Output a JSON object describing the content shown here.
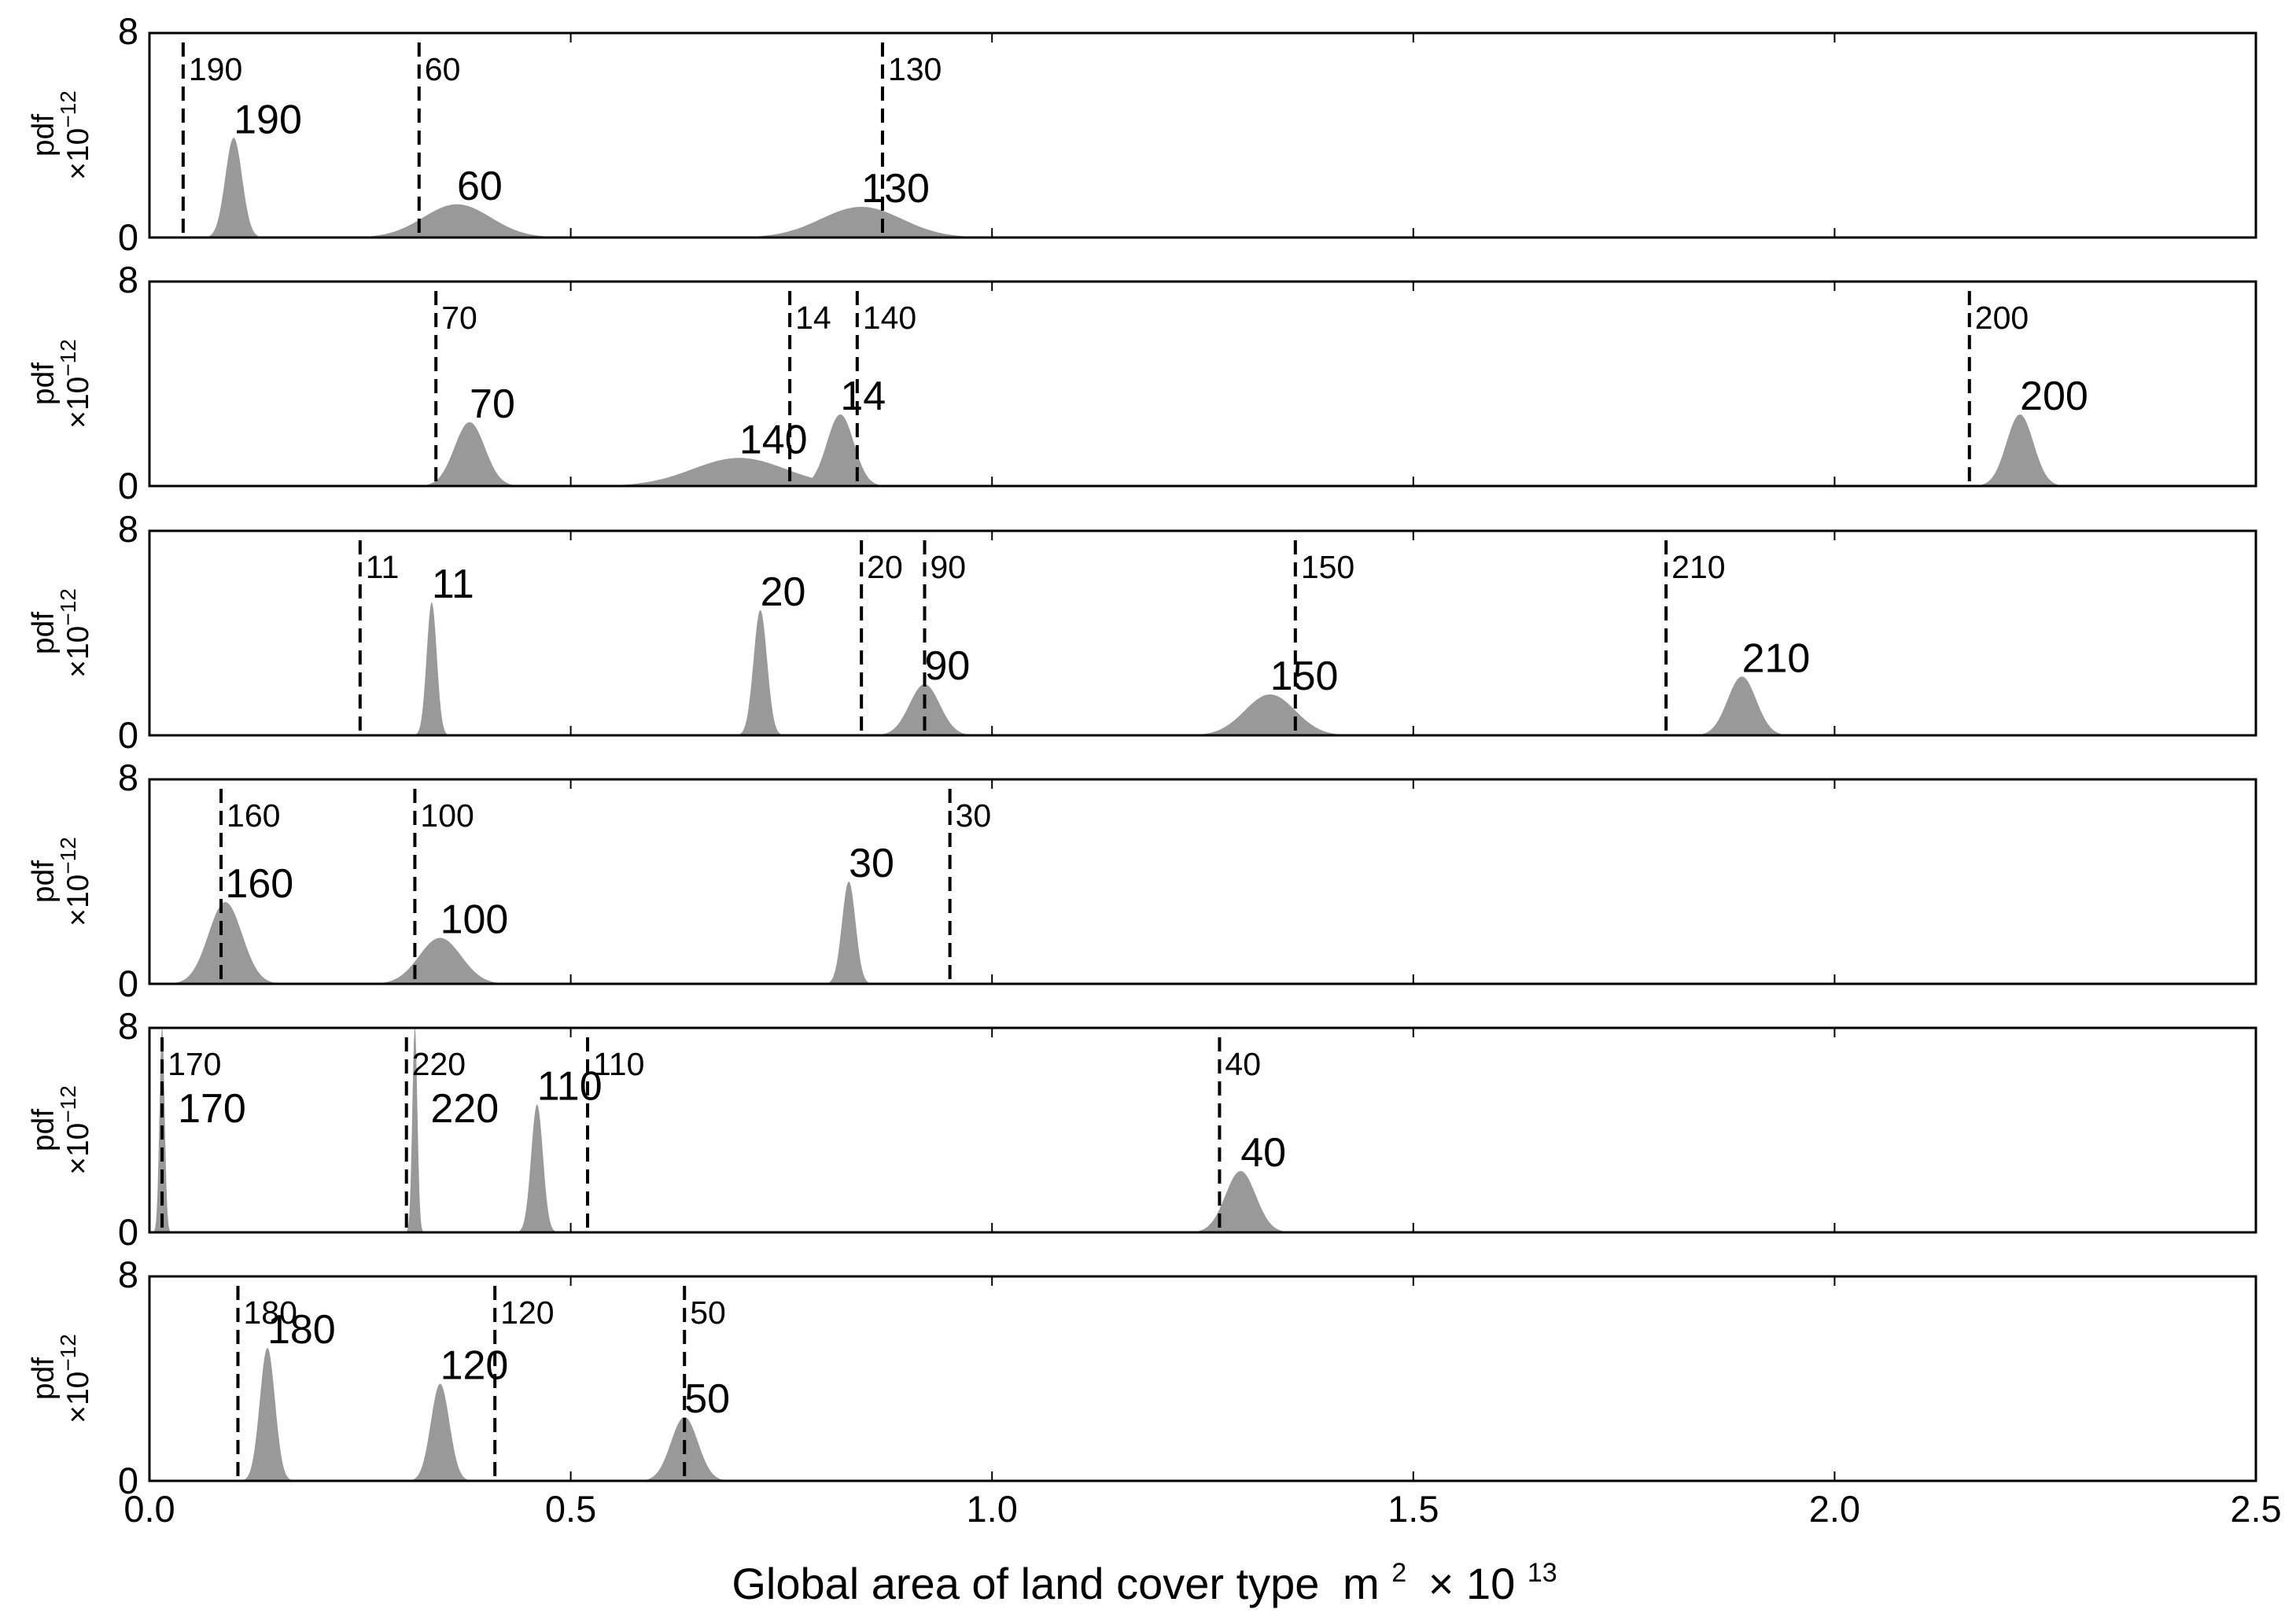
{
  "chart_data": {
    "type": "area",
    "xlabel": "Global area of land cover type",
    "xlabel_unit": "m",
    "xlabel_unit_sup": "2",
    "xlabel_times": "× 10",
    "xlabel_exp": "13",
    "xlim": [
      0.0,
      2.5
    ],
    "xticks": [
      0.0,
      0.5,
      1.0,
      1.5,
      2.0,
      2.5
    ],
    "xtick_labels": [
      "0.0",
      "0.5",
      "1.0",
      "1.5",
      "2.0",
      "2.5"
    ],
    "ylabel": "pdf",
    "ylabel_times": "×10",
    "ylabel_exp": "−12",
    "ylim": [
      0,
      8
    ],
    "ytick_labels": [
      "0",
      "8"
    ],
    "fill_color": "#999999",
    "panels": [
      {
        "peaks": [
          {
            "label": "190",
            "center": 0.1,
            "sigma": 0.01,
            "height": 3.9
          },
          {
            "label": "60",
            "center": 0.365,
            "sigma": 0.04,
            "height": 1.3
          },
          {
            "label": "130",
            "center": 0.845,
            "sigma": 0.048,
            "height": 1.2
          }
        ],
        "markers": [
          {
            "label": "190",
            "x": 0.04
          },
          {
            "label": "60",
            "x": 0.32
          },
          {
            "label": "130",
            "x": 0.87
          }
        ]
      },
      {
        "peaks": [
          {
            "label": "70",
            "center": 0.38,
            "sigma": 0.018,
            "height": 2.5
          },
          {
            "label": "140",
            "center": 0.7,
            "sigma": 0.055,
            "height": 1.1
          },
          {
            "label": "14",
            "center": 0.82,
            "sigma": 0.016,
            "height": 2.8
          },
          {
            "label": "200",
            "center": 2.22,
            "sigma": 0.016,
            "height": 2.8
          }
        ],
        "markers": [
          {
            "label": "70",
            "x": 0.34
          },
          {
            "label": "14",
            "x": 0.76
          },
          {
            "label": "140",
            "x": 0.84
          },
          {
            "label": "200",
            "x": 2.16
          }
        ]
      },
      {
        "peaks": [
          {
            "label": "11",
            "center": 0.335,
            "sigma": 0.006,
            "height": 5.2
          },
          {
            "label": "20",
            "center": 0.725,
            "sigma": 0.008,
            "height": 4.9
          },
          {
            "label": "90",
            "center": 0.92,
            "sigma": 0.018,
            "height": 2.0
          },
          {
            "label": "150",
            "center": 1.33,
            "sigma": 0.03,
            "height": 1.6
          },
          {
            "label": "210",
            "center": 1.89,
            "sigma": 0.017,
            "height": 2.3
          }
        ],
        "markers": [
          {
            "label": "11",
            "x": 0.25
          },
          {
            "label": "20",
            "x": 0.845
          },
          {
            "label": "90",
            "x": 0.92
          },
          {
            "label": "150",
            "x": 1.36
          },
          {
            "label": "210",
            "x": 1.8
          }
        ]
      },
      {
        "peaks": [
          {
            "label": "160",
            "center": 0.09,
            "sigma": 0.02,
            "height": 3.2
          },
          {
            "label": "100",
            "center": 0.345,
            "sigma": 0.025,
            "height": 1.8
          },
          {
            "label": "30",
            "center": 0.83,
            "sigma": 0.008,
            "height": 4.0
          }
        ],
        "markers": [
          {
            "label": "160",
            "x": 0.085
          },
          {
            "label": "100",
            "x": 0.315
          },
          {
            "label": "30",
            "x": 0.95
          }
        ]
      },
      {
        "peaks": [
          {
            "label": "170",
            "center": 0.015,
            "sigma": 0.003,
            "height": 8.0
          },
          {
            "label": "220",
            "center": 0.315,
            "sigma": 0.003,
            "height": 8.0
          },
          {
            "label": "110",
            "center": 0.46,
            "sigma": 0.007,
            "height": 5.0
          },
          {
            "label": "40",
            "center": 1.295,
            "sigma": 0.018,
            "height": 2.4
          }
        ],
        "markers": [
          {
            "label": "170",
            "x": 0.015
          },
          {
            "label": "220",
            "x": 0.305
          },
          {
            "label": "110",
            "x": 0.52
          },
          {
            "label": "40",
            "x": 1.27
          }
        ]
      },
      {
        "peaks": [
          {
            "label": "180",
            "center": 0.14,
            "sigma": 0.009,
            "height": 5.2
          },
          {
            "label": "120",
            "center": 0.345,
            "sigma": 0.011,
            "height": 3.8
          },
          {
            "label": "50",
            "center": 0.635,
            "sigma": 0.016,
            "height": 2.5
          }
        ],
        "markers": [
          {
            "label": "180",
            "x": 0.105
          },
          {
            "label": "120",
            "x": 0.41
          },
          {
            "label": "50",
            "x": 0.635
          }
        ]
      }
    ]
  }
}
